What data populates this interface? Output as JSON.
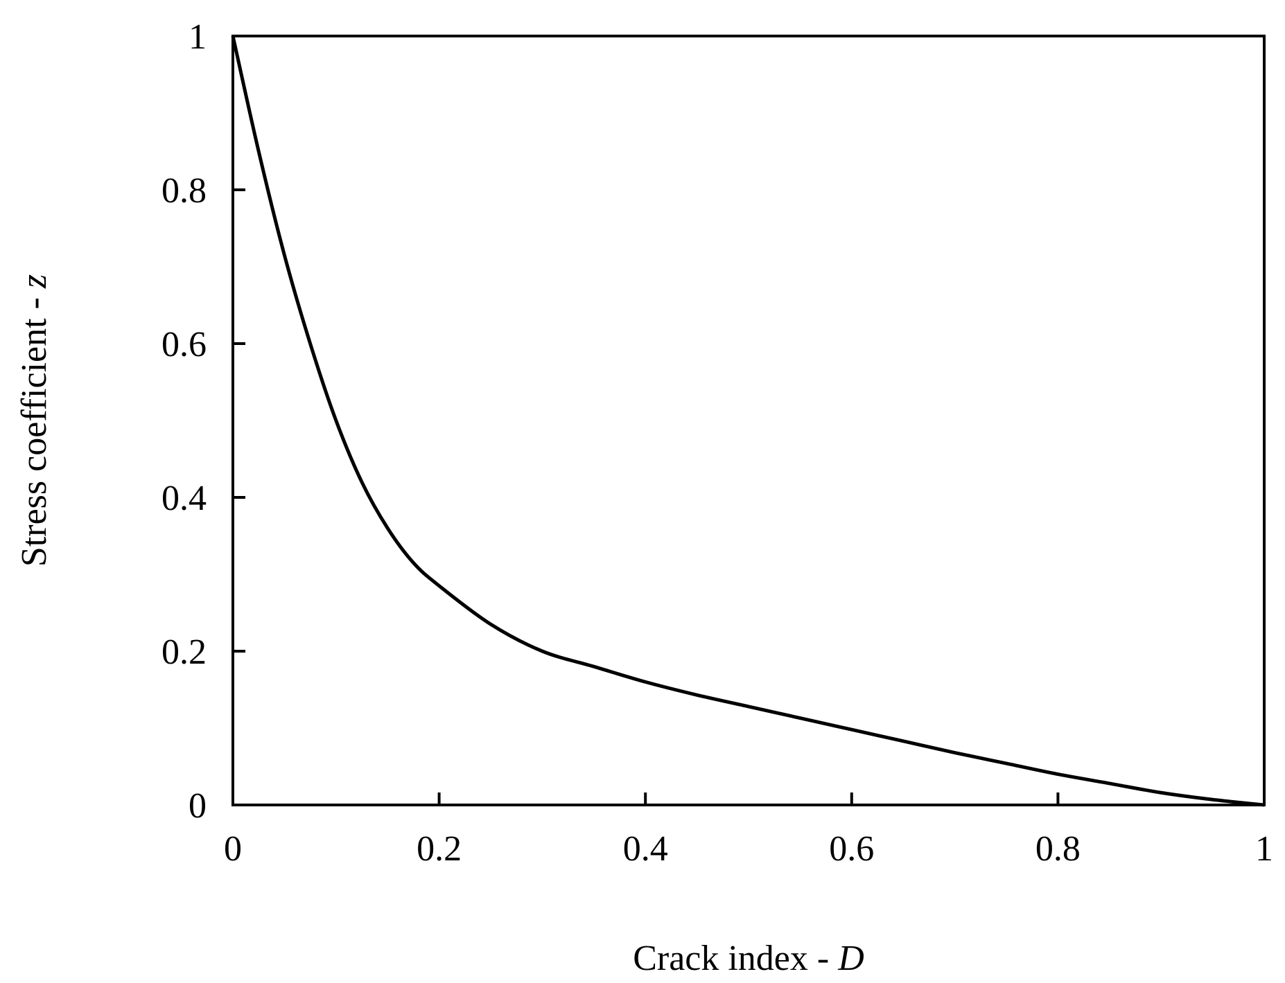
{
  "chart_data": {
    "type": "line",
    "xlabel": {
      "text": "Crack index - ",
      "var": "D"
    },
    "ylabel": {
      "text": "Stress coefficient - ",
      "var": "z"
    },
    "xlim": [
      0,
      1
    ],
    "ylim": [
      0,
      1
    ],
    "x_ticks": [
      "0",
      "0.2",
      "0.4",
      "0.6",
      "0.8",
      "1"
    ],
    "y_ticks": [
      "0",
      "0.2",
      "0.4",
      "0.6",
      "0.8",
      "1"
    ],
    "grid": false,
    "legend": "none",
    "series": [
      {
        "color": "#000000",
        "x": [
          0,
          0.025,
          0.05,
          0.075,
          0.1,
          0.125,
          0.15,
          0.175,
          0.2,
          0.25,
          0.3,
          0.35,
          0.4,
          0.45,
          0.5,
          0.55,
          0.6,
          0.65,
          0.7,
          0.75,
          0.8,
          0.85,
          0.9,
          0.95,
          1.0
        ],
        "y": [
          1.0,
          0.85,
          0.715,
          0.6,
          0.5,
          0.42,
          0.36,
          0.315,
          0.285,
          0.235,
          0.2,
          0.18,
          0.16,
          0.143,
          0.128,
          0.113,
          0.098,
          0.083,
          0.068,
          0.054,
          0.04,
          0.028,
          0.016,
          0.007,
          0.0
        ]
      }
    ]
  }
}
